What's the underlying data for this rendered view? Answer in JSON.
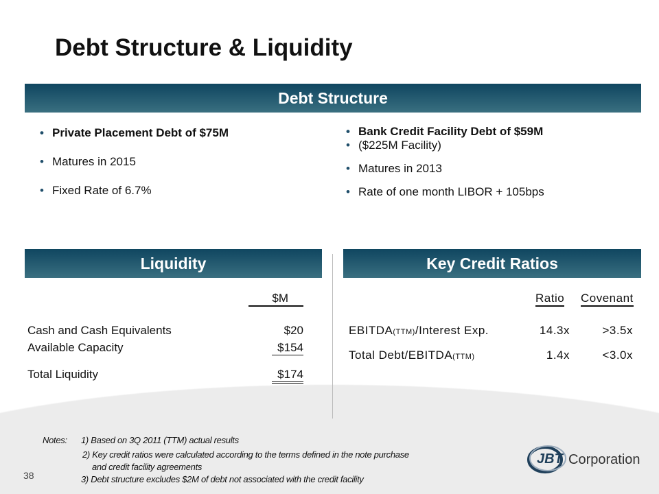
{
  "title": "Debt Structure & Liquidity",
  "debt_structure": {
    "header": "Debt Structure",
    "left": [
      "Private Placement Debt of $75M",
      "Matures in 2015",
      "Fixed Rate of 6.7%"
    ],
    "right": [
      "Bank Credit Facility Debt of $59M",
      "($225M Facility)",
      "Matures in 2013",
      "Rate of one month  LIBOR + 105bps"
    ]
  },
  "liquidity": {
    "header": "Liquidity",
    "col": "$M",
    "rows": [
      {
        "label": "Cash and Cash Equivalents",
        "value": "$20"
      },
      {
        "label": "Available Capacity",
        "value": "$154"
      },
      {
        "label": "Total Liquidity",
        "value": "$174"
      }
    ]
  },
  "ratios": {
    "header": "Key Credit Ratios",
    "col_ratio": "Ratio",
    "col_covenant": "Covenant",
    "rows": [
      {
        "a": "EBITDA",
        "b": "(TTM)",
        "c": "/Interest Exp.",
        "ratio": "14.3x",
        "cov": ">3.5x"
      },
      {
        "a": "Total Debt/EBITDA",
        "b": "(TTM)",
        "c": "",
        "ratio": "1.4x",
        "cov": "<3.0x"
      }
    ]
  },
  "notes": {
    "label": "Notes:",
    "n1": "1)  Based on 3Q 2011 (TTM) actual results",
    "n2": "2) Key credit ratios were  calculated according to the terms defined in the note purchase",
    "n2b": "and credit facility agreements",
    "n3": "3) Debt structure excludes $2M of debt not associated with  the credit facility"
  },
  "page_number": "38",
  "logo": {
    "mark": "JBT",
    "text": "Corporation"
  }
}
